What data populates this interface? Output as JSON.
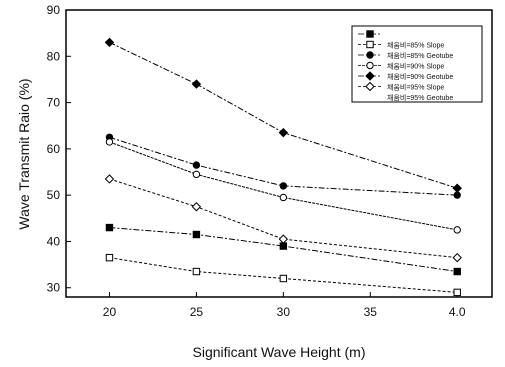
{
  "chart_data": {
    "type": "line",
    "xlabel": "Significant Wave Height (m)",
    "ylabel": "Wave Transmit Raio (%)",
    "x_ticks": [
      "20",
      "25",
      "30",
      "35",
      "4.0"
    ],
    "y_ticks": [
      "30",
      "40",
      "50",
      "60",
      "70",
      "80",
      "90"
    ],
    "xlim": [
      17.5,
      42
    ],
    "ylim": [
      28,
      90
    ],
    "grid": false,
    "legend_position": "top-right",
    "series": [
      {
        "name": "",
        "marker": "filled-square",
        "x": [
          20,
          25,
          30,
          40
        ],
        "values": [
          43,
          41.5,
          39,
          33.5
        ]
      },
      {
        "name": "채움비=85% Slope",
        "marker": "open-square",
        "x": [
          20,
          25,
          30,
          40
        ],
        "values": [
          36.5,
          33.5,
          32,
          29
        ]
      },
      {
        "name": "채움비=85% Geotube",
        "marker": "filled-circle",
        "x": [
          20,
          25,
          30,
          40
        ],
        "values": [
          62.5,
          56.5,
          52,
          50
        ]
      },
      {
        "name": "채움비=90% Slope",
        "marker": "open-circle",
        "x": [
          20,
          25,
          30,
          40
        ],
        "values": [
          61.5,
          54.5,
          49.5,
          42.5
        ]
      },
      {
        "name": "채움비=90% Geotube",
        "marker": "filled-diamond",
        "x": [
          20,
          25,
          30,
          40
        ],
        "values": [
          83,
          74,
          63.5,
          51.5
        ]
      },
      {
        "name": "채움비=95% Slope",
        "marker": "open-diamond",
        "x": [
          20,
          25,
          30,
          40
        ],
        "values": [
          53.5,
          47.5,
          40.5,
          36.5
        ]
      },
      {
        "name": "채움비=95% Geotube",
        "marker": "none",
        "x": [],
        "values": []
      }
    ]
  }
}
